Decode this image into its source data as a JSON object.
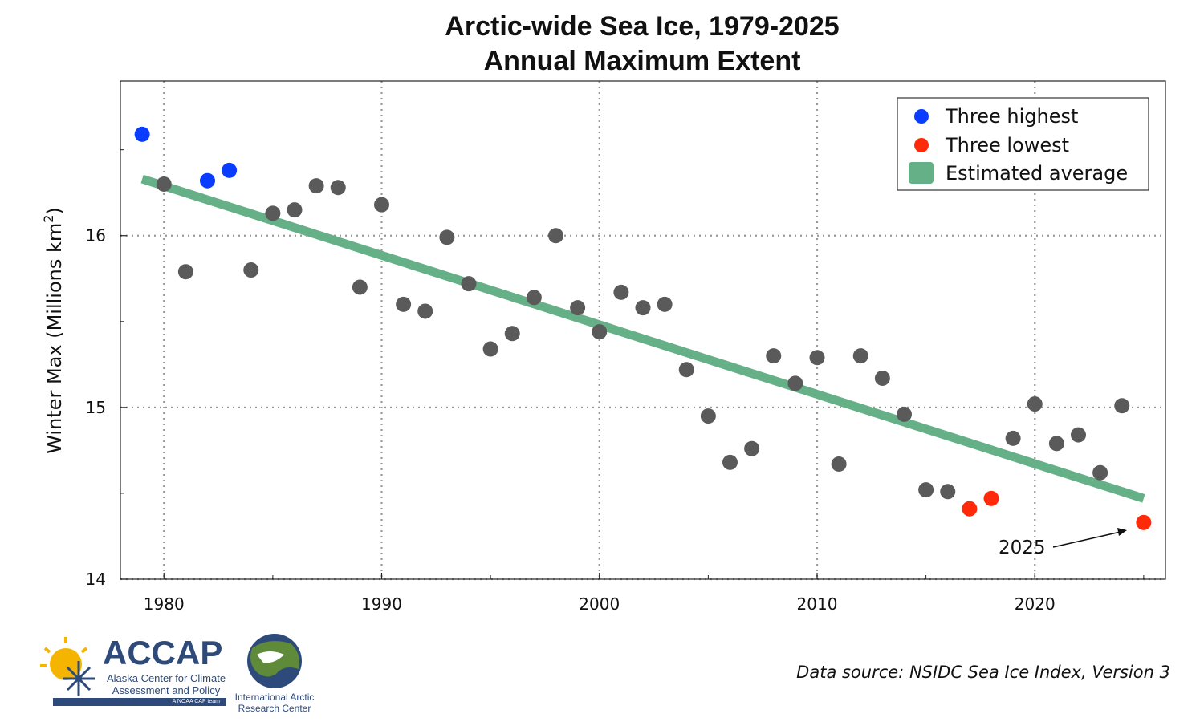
{
  "chart_data": {
    "type": "scatter",
    "title": [
      "Arctic-wide Sea Ice, 1979-2025",
      "Annual Maximum Extent"
    ],
    "ylabel": "Winter Max (Millions km",
    "ylabel_sup": "2",
    "ylabel_close": ")",
    "xlim": [
      1978,
      2026
    ],
    "ylim": [
      14,
      16.9
    ],
    "xticks": [
      1980,
      1990,
      2000,
      2010,
      2020
    ],
    "yticks": [
      14,
      15,
      16
    ],
    "grid": true,
    "legend_position": "top-right",
    "legend": [
      {
        "label": "Three highest",
        "marker": "circle",
        "color": "#0a3cff"
      },
      {
        "label": "Three lowest",
        "marker": "circle",
        "color": "#ff2a0a"
      },
      {
        "label": "Estimated average",
        "marker": "square",
        "color": "#66b088"
      }
    ],
    "series": [
      {
        "name": "Three highest",
        "color": "#0a3cff",
        "x": [
          1979,
          1982,
          1983
        ],
        "y": [
          16.59,
          16.32,
          16.38
        ]
      },
      {
        "name": "Three lowest",
        "color": "#ff2a0a",
        "x": [
          2017,
          2018,
          2025
        ],
        "y": [
          14.41,
          14.47,
          14.33
        ]
      },
      {
        "name": "",
        "color": "#5a5a5a",
        "x": [
          1980,
          1981,
          1984,
          1985,
          1986,
          1987,
          1988,
          1989,
          1990,
          1991,
          1992,
          1993,
          1994,
          1995,
          1996,
          1997,
          1998,
          1999,
          2000,
          2001,
          2002,
          2003,
          2004,
          2005,
          2006,
          2007,
          2008,
          2009,
          2010,
          2011,
          2012,
          2013,
          2014,
          2015,
          2016,
          2019,
          2020,
          2021,
          2022,
          2023,
          2024
        ],
        "y": [
          16.3,
          15.79,
          15.8,
          16.13,
          16.15,
          16.29,
          16.28,
          15.7,
          16.18,
          15.6,
          15.56,
          15.99,
          15.72,
          15.34,
          15.43,
          15.64,
          16.0,
          15.58,
          15.44,
          15.67,
          15.58,
          15.6,
          15.22,
          14.95,
          14.68,
          14.76,
          15.3,
          15.14,
          15.29,
          14.67,
          15.3,
          15.17,
          14.96,
          14.52,
          14.51,
          14.82,
          15.02,
          14.79,
          14.84,
          14.62,
          15.01
        ]
      }
    ],
    "trend": {
      "name": "Estimated average",
      "color": "#66b088",
      "x": [
        1979,
        2025
      ],
      "y": [
        16.33,
        14.47
      ]
    },
    "annotation": {
      "text": "2025",
      "x": 2025,
      "y": 14.33
    }
  },
  "source": "Data source: NSIDC Sea Ice Index, Version 3",
  "logos": {
    "accap_word": "ACCAP",
    "accap_sub": "Alaska Center for Climate Assessment and Policy",
    "accap_tagline": "A NOAA CAP team",
    "iarc_text": "International Arctic Research Center"
  }
}
